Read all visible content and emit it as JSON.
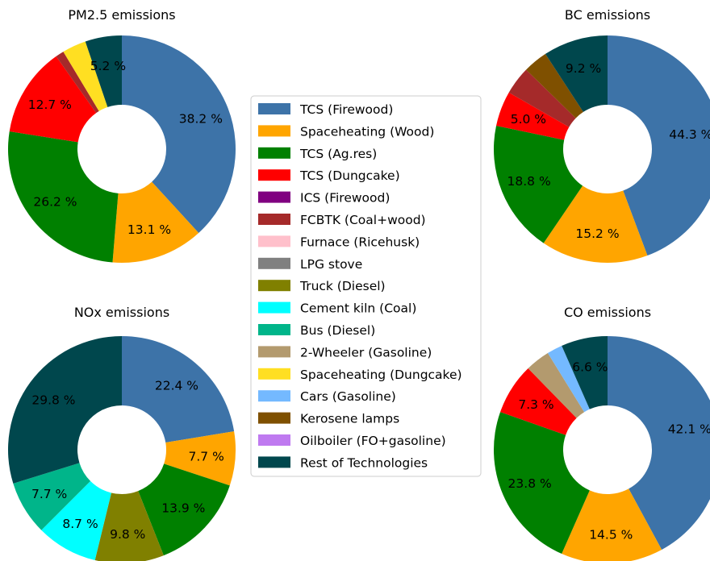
{
  "colors": {
    "TCS (Firewood)": "#3d73a8",
    "Spaceheating (Wood)": "#ffa500",
    "TCS (Ag.res)": "#008000",
    "TCS (Dungcake)": "#ff0000",
    "ICS (Firewood)": "#800080",
    "FCBTK (Coal+wood)": "#a52a2a",
    "Furnace (Ricehusk)": "#ffc0cb",
    "LPG stove": "#808080",
    "Truck (Diesel)": "#808000",
    "Cement kiln (Coal)": "#00ffff",
    "Bus (Diesel)": "#00b58a",
    "2-Wheeler (Gasoline)": "#b39a6e",
    "Spaceheating (Dungcake)": "#ffdf22",
    "Cars (Gasoline)": "#74b9ff",
    "Kerosene lamps": "#7f5000",
    "Oilboiler (FO+gasoline)": "#bf7af0",
    "Rest of Technologies": "#00474d"
  },
  "legend": [
    "TCS (Firewood)",
    "Spaceheating (Wood)",
    "TCS (Ag.res)",
    "TCS (Dungcake)",
    "ICS (Firewood)",
    "FCBTK (Coal+wood)",
    "Furnace (Ricehusk)",
    "LPG stove",
    "Truck (Diesel)",
    "Cement kiln (Coal)",
    "Bus (Diesel)",
    "2-Wheeler (Gasoline)",
    "Spaceheating (Dungcake)",
    "Cars (Gasoline)",
    "Kerosene lamps",
    "Oilboiler (FO+gasoline)",
    "Rest of Technologies"
  ],
  "chart_data": [
    {
      "type": "pie",
      "title": "PM2.5 emissions",
      "slices": [
        {
          "category": "TCS (Firewood)",
          "value": 38.2,
          "label": "38.2 %"
        },
        {
          "category": "Spaceheating (Wood)",
          "value": 13.1,
          "label": "13.1 %"
        },
        {
          "category": "TCS (Ag.res)",
          "value": 26.2,
          "label": "26.2 %"
        },
        {
          "category": "TCS (Dungcake)",
          "value": 12.7,
          "label": "12.7 %"
        },
        {
          "category": "FCBTK (Coal+wood)",
          "value": 1.2,
          "label": ""
        },
        {
          "category": "Spaceheating (Dungcake)",
          "value": 3.4,
          "label": ""
        },
        {
          "category": "Rest of Technologies",
          "value": 5.2,
          "label": "5.2 %"
        }
      ]
    },
    {
      "type": "pie",
      "title": "BC emissions",
      "slices": [
        {
          "category": "TCS (Firewood)",
          "value": 44.3,
          "label": "44.3 %"
        },
        {
          "category": "Spaceheating (Wood)",
          "value": 15.2,
          "label": "15.2 %"
        },
        {
          "category": "TCS (Ag.res)",
          "value": 18.8,
          "label": "18.8 %"
        },
        {
          "category": "TCS (Dungcake)",
          "value": 5.0,
          "label": "5.0 %"
        },
        {
          "category": "FCBTK (Coal+wood)",
          "value": 4.0,
          "label": ""
        },
        {
          "category": "Kerosene lamps",
          "value": 3.5,
          "label": ""
        },
        {
          "category": "Rest of Technologies",
          "value": 9.2,
          "label": "9.2 %"
        }
      ]
    },
    {
      "type": "pie",
      "title": "NOx emissions",
      "slices": [
        {
          "category": "TCS (Firewood)",
          "value": 22.4,
          "label": "22.4 %"
        },
        {
          "category": "Spaceheating (Wood)",
          "value": 7.7,
          "label": "7.7 %"
        },
        {
          "category": "TCS (Ag.res)",
          "value": 13.9,
          "label": "13.9 %"
        },
        {
          "category": "Truck (Diesel)",
          "value": 9.8,
          "label": "9.8 %"
        },
        {
          "category": "Cement kiln (Coal)",
          "value": 8.7,
          "label": "8.7 %"
        },
        {
          "category": "Bus (Diesel)",
          "value": 7.7,
          "label": "7.7 %"
        },
        {
          "category": "Rest of Technologies",
          "value": 29.8,
          "label": "29.8 %"
        }
      ]
    },
    {
      "type": "pie",
      "title": "CO emissions",
      "slices": [
        {
          "category": "TCS (Firewood)",
          "value": 42.1,
          "label": "42.1 %"
        },
        {
          "category": "Spaceheating (Wood)",
          "value": 14.5,
          "label": "14.5 %"
        },
        {
          "category": "TCS (Ag.res)",
          "value": 23.8,
          "label": "23.8 %"
        },
        {
          "category": "TCS (Dungcake)",
          "value": 7.3,
          "label": "7.3 %"
        },
        {
          "category": "2-Wheeler (Gasoline)",
          "value": 3.5,
          "label": ""
        },
        {
          "category": "Cars (Gasoline)",
          "value": 2.2,
          "label": ""
        },
        {
          "category": "Rest of Technologies",
          "value": 6.6,
          "label": "6.6 %"
        }
      ]
    }
  ]
}
